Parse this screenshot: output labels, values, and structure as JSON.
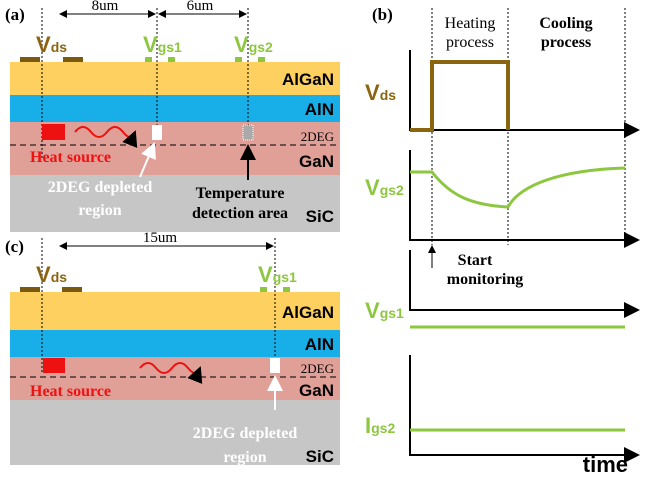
{
  "panel_a": {
    "label": "(a)",
    "dim_1": "8um",
    "dim_2": "6um",
    "electrodes": [
      {
        "main": "V",
        "sub": "ds"
      },
      {
        "main": "V",
        "sub": "gs1"
      },
      {
        "main": "V",
        "sub": "gs2"
      }
    ],
    "layers": [
      "AlGaN",
      "AlN",
      "2DEG",
      "GaN",
      "SiC"
    ],
    "heat_source": "Heat source",
    "depleted": [
      "2DEG depleted",
      "region"
    ],
    "detection": [
      "Temperature",
      "detection area"
    ]
  },
  "panel_b": {
    "label": "(b)",
    "heating": [
      "Heating",
      "process"
    ],
    "cooling": [
      "Cooling",
      "process"
    ],
    "signals": [
      {
        "main": "V",
        "sub": "ds"
      },
      {
        "main": "V",
        "sub": "gs2"
      },
      {
        "main": "V",
        "sub": "gs1"
      },
      {
        "main": "I",
        "sub": "gs2"
      }
    ],
    "start": [
      "Start",
      "monitoring"
    ],
    "time": "time"
  },
  "panel_c": {
    "label": "(c)",
    "dim": "15um",
    "electrodes": [
      {
        "main": "V",
        "sub": "ds"
      },
      {
        "main": "V",
        "sub": "gs1"
      }
    ],
    "layers": [
      "AlGaN",
      "AlN",
      "2DEG",
      "GaN",
      "SiC"
    ],
    "heat_source": "Heat source",
    "depleted": [
      "2DEG depleted",
      "region"
    ]
  }
}
